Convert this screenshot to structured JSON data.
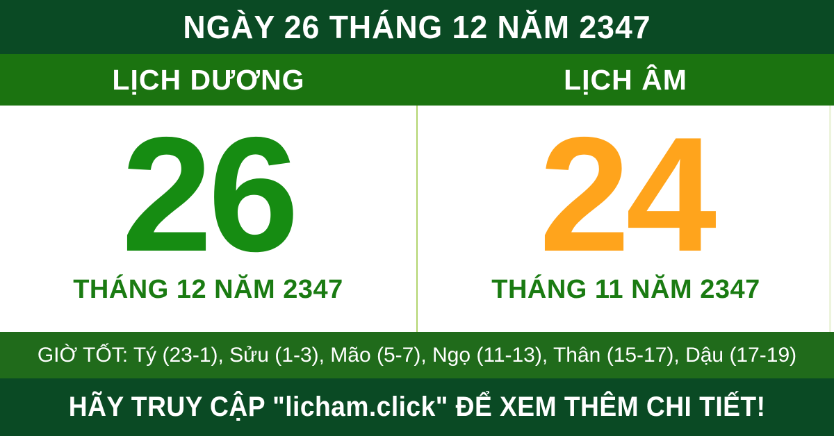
{
  "header": {
    "title": "NGÀY 26 THÁNG 12 NĂM 2347"
  },
  "calendar": {
    "solar": {
      "label": "LỊCH DƯƠNG",
      "day": "26",
      "month_year": "THÁNG 12 NĂM 2347"
    },
    "lunar": {
      "label": "LỊCH ÂM",
      "day": "24",
      "month_year": "THÁNG 11 NĂM 2347"
    }
  },
  "good_hours": {
    "text": "GIỜ TỐT: Tý (23-1), Sửu (1-3), Mão (5-7), Ngọ (11-13), Thân (15-17), Dậu (17-19)"
  },
  "footer": {
    "text": "HÃY TRUY CẬP \"licham.click\" ĐỂ XEM THÊM CHI TIẾT!"
  },
  "colors": {
    "dark_green": "#0A4A24",
    "bar_green": "#1B7310",
    "hours_green": "#206B1B",
    "solar_day": "#168C12",
    "lunar_day": "#FFA41C",
    "month_green": "#1A7B12",
    "divider_green": "#B2D56E",
    "text_white": "#FFFFFF"
  }
}
